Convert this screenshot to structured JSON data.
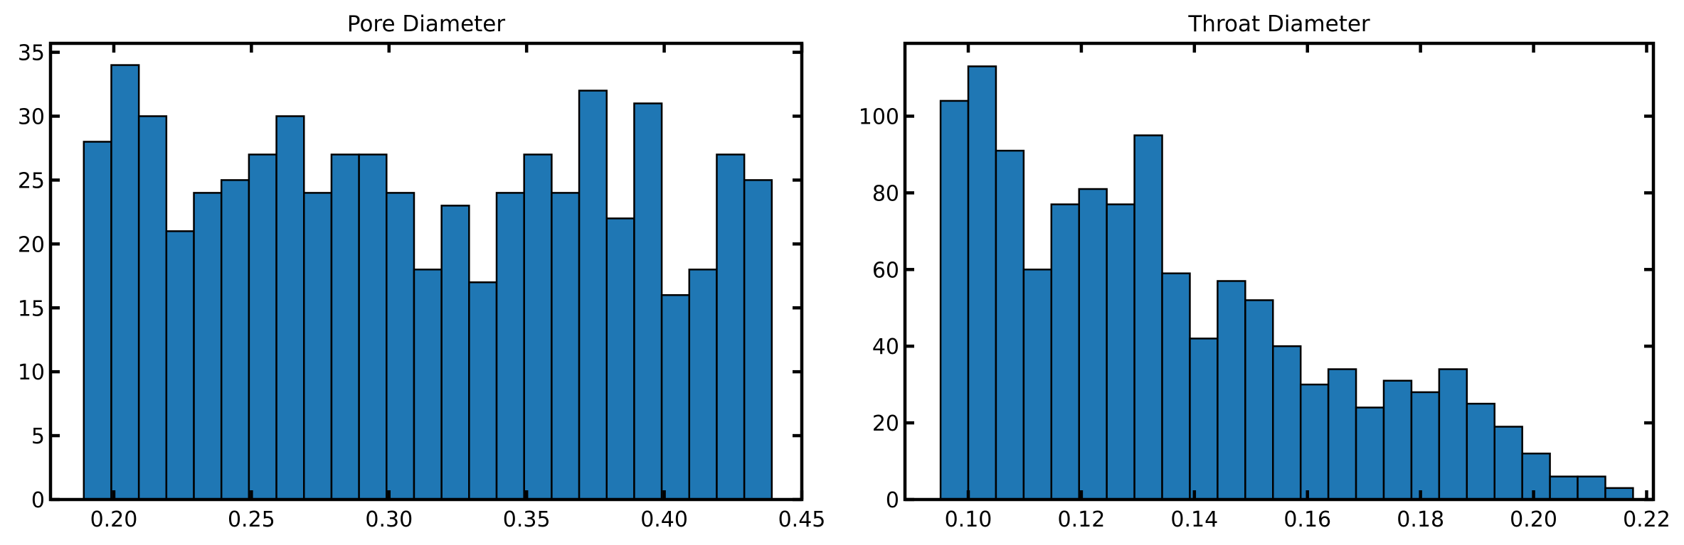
{
  "chart_data": [
    {
      "type": "bar",
      "title": "Pore Diameter",
      "xlabel": "",
      "ylabel": "",
      "bar_color": "#1f77b4",
      "edge_color": "#000000",
      "xlim": [
        0.177,
        0.45
      ],
      "ylim": [
        0,
        35.7
      ],
      "xticks": [
        0.2,
        0.25,
        0.3,
        0.35,
        0.4,
        0.45
      ],
      "xtick_labels": [
        "0.20",
        "0.25",
        "0.30",
        "0.35",
        "0.40",
        "0.45"
      ],
      "yticks": [
        0,
        5,
        10,
        15,
        20,
        25,
        30,
        35
      ],
      "ytick_labels": [
        "0",
        "5",
        "10",
        "15",
        "20",
        "25",
        "30",
        "35"
      ],
      "bin_edges": [
        0.1891,
        0.1991,
        0.2091,
        0.2191,
        0.2291,
        0.2391,
        0.2491,
        0.2591,
        0.2691,
        0.2791,
        0.2891,
        0.2991,
        0.3091,
        0.3191,
        0.3291,
        0.3391,
        0.3491,
        0.3591,
        0.3691,
        0.3791,
        0.3891,
        0.3991,
        0.4091,
        0.4191,
        0.4291,
        0.4391
      ],
      "values": [
        28,
        34,
        30,
        21,
        24,
        25,
        27,
        30,
        24,
        27,
        27,
        24,
        18,
        23,
        17,
        24,
        27,
        24,
        32,
        22,
        31,
        16,
        18,
        27,
        25
      ]
    },
    {
      "type": "bar",
      "title": "Throat Diameter",
      "xlabel": "",
      "ylabel": "",
      "bar_color": "#1f77b4",
      "edge_color": "#000000",
      "xlim": [
        0.0888,
        0.2212
      ],
      "ylim": [
        0,
        119
      ],
      "xticks": [
        0.1,
        0.12,
        0.14,
        0.16,
        0.18,
        0.2,
        0.22
      ],
      "xtick_labels": [
        "0.10",
        "0.12",
        "0.14",
        "0.16",
        "0.18",
        "0.20",
        "0.22"
      ],
      "yticks": [
        0,
        20,
        40,
        60,
        80,
        100
      ],
      "ytick_labels": [
        "0",
        "20",
        "40",
        "60",
        "80",
        "100"
      ],
      "bin_edges": [
        0.0951,
        0.1,
        0.1049,
        0.1098,
        0.1147,
        0.1196,
        0.1245,
        0.1294,
        0.1343,
        0.1392,
        0.1441,
        0.149,
        0.1539,
        0.1588,
        0.1637,
        0.1686,
        0.1735,
        0.1784,
        0.1833,
        0.1882,
        0.1931,
        0.198,
        0.2029,
        0.2078,
        0.2127,
        0.2176
      ],
      "values": [
        104,
        113,
        91,
        60,
        77,
        81,
        77,
        95,
        59,
        42,
        57,
        52,
        40,
        30,
        34,
        24,
        31,
        28,
        34,
        25,
        19,
        12,
        6,
        6,
        3,
        0
      ]
    }
  ]
}
